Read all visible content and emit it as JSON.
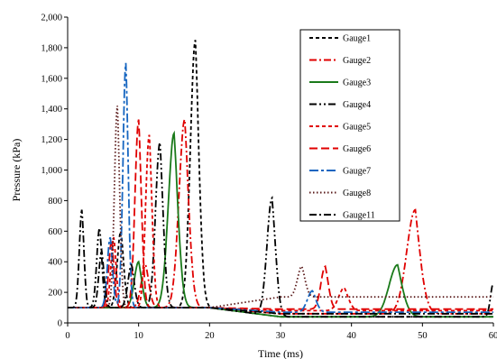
{
  "chart_data": {
    "type": "line",
    "xlabel": "Time (ms)",
    "ylabel": "Pressure (kPa)",
    "xlim": [
      0,
      60
    ],
    "ylim": [
      0,
      2000
    ],
    "x_ticks": [
      "0",
      "10",
      "20",
      "30",
      "40",
      "50",
      "60"
    ],
    "y_ticks": [
      "0",
      "200",
      "400",
      "600",
      "800",
      "1,000",
      "1,200",
      "1,400",
      "1,600",
      "1,800",
      "2,000"
    ],
    "grid": false,
    "legend_position": "top-right",
    "series": [
      {
        "name": "Gauge1",
        "color": "#000000",
        "dash": "short-dash",
        "peaks": [
          [
            18,
            1850,
            0.7
          ],
          [
            7.5,
            600,
            0.5
          ]
        ],
        "base": 100,
        "tail": 40
      },
      {
        "name": "Gauge2",
        "color": "#e00000",
        "dash": "dash-dot",
        "peaks": [
          [
            16.5,
            1330,
            0.8
          ],
          [
            49,
            780,
            1.2
          ],
          [
            11,
            380,
            0.6
          ]
        ],
        "base": 100,
        "tail": 60
      },
      {
        "name": "Gauge3",
        "color": "#1a7a1a",
        "dash": "solid",
        "peaks": [
          [
            15,
            1240,
            0.8
          ],
          [
            46.5,
            440,
            1.2
          ],
          [
            10,
            400,
            0.6
          ]
        ],
        "base": 100,
        "tail": 40
      },
      {
        "name": "Gauge4",
        "color": "#000000",
        "dash": "dash-dot-dot",
        "peaks": [
          [
            13,
            1180,
            0.6
          ],
          [
            28.8,
            870,
            0.7
          ],
          [
            4.5,
            620,
            0.4
          ],
          [
            60,
            320,
            0.4
          ]
        ],
        "base": 100,
        "tail": 40
      },
      {
        "name": "Gauge5",
        "color": "#e00000",
        "dash": "short-dash",
        "peaks": [
          [
            11.5,
            1230,
            0.5
          ],
          [
            39,
            250,
            0.8
          ],
          [
            6.5,
            560,
            0.4
          ]
        ],
        "base": 100,
        "tail": 80
      },
      {
        "name": "Gauge6",
        "color": "#e00000",
        "dash": "long-dash",
        "peaks": [
          [
            10,
            1330,
            0.5
          ],
          [
            36.3,
            380,
            0.6
          ],
          [
            6.2,
            540,
            0.4
          ]
        ],
        "base": 100,
        "tail": 90
      },
      {
        "name": "Gauge7",
        "color": "#1565c0",
        "dash": "long-dash-dot",
        "peaks": [
          [
            8.2,
            1700,
            0.4
          ],
          [
            34.5,
            240,
            0.7
          ],
          [
            6,
            560,
            0.4
          ]
        ],
        "base": 100,
        "tail": 70
      },
      {
        "name": "Gauge8",
        "color": "#5a1a1a",
        "dash": "dotted",
        "peaks": [
          [
            7,
            1420,
            0.4
          ],
          [
            33,
            300,
            0.6
          ]
        ],
        "base": 100,
        "tail": 170
      },
      {
        "name": "Gauge11",
        "color": "#000000",
        "dash": "dash-dot",
        "peaks": [
          [
            2,
            740,
            0.35
          ],
          [
            4.8,
            470,
            0.4
          ],
          [
            9,
            380,
            0.5
          ]
        ],
        "base": 100,
        "tail": 60
      }
    ]
  }
}
